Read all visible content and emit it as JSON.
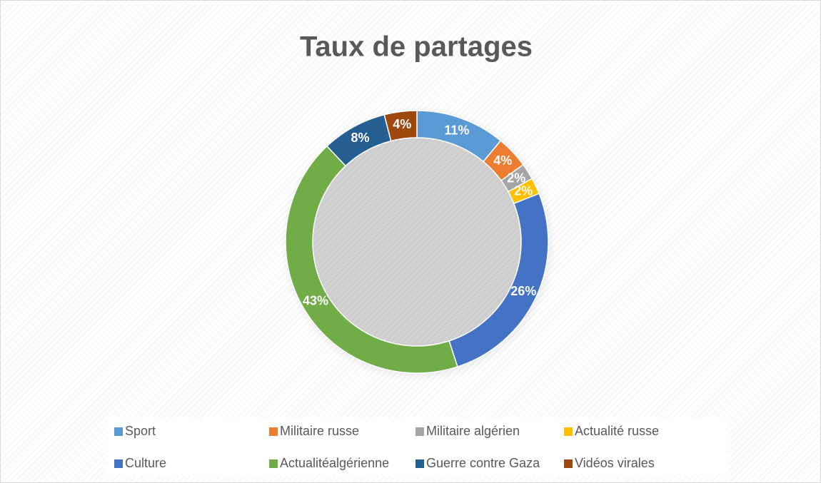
{
  "chart_data": {
    "type": "donut",
    "title": "Taux de partages",
    "categories": [
      "Sport",
      "Militaire russe",
      "Militaire algérien",
      "Actualité russe",
      "Culture",
      "Actualitéalgérienne",
      "Guerre contre Gaza",
      "Vidéos virales"
    ],
    "values": [
      11,
      4,
      2,
      2,
      26,
      43,
      8,
      4
    ],
    "value_labels": [
      "11%",
      "4%",
      "2%",
      "2%",
      "26%",
      "43%",
      "8%",
      "4%"
    ],
    "colors": [
      "#5b9bd5",
      "#ed7d31",
      "#a5a5a5",
      "#ffc000",
      "#4472c4",
      "#70ad47",
      "#255e91",
      "#9e480e"
    ],
    "legend": "bottom"
  }
}
